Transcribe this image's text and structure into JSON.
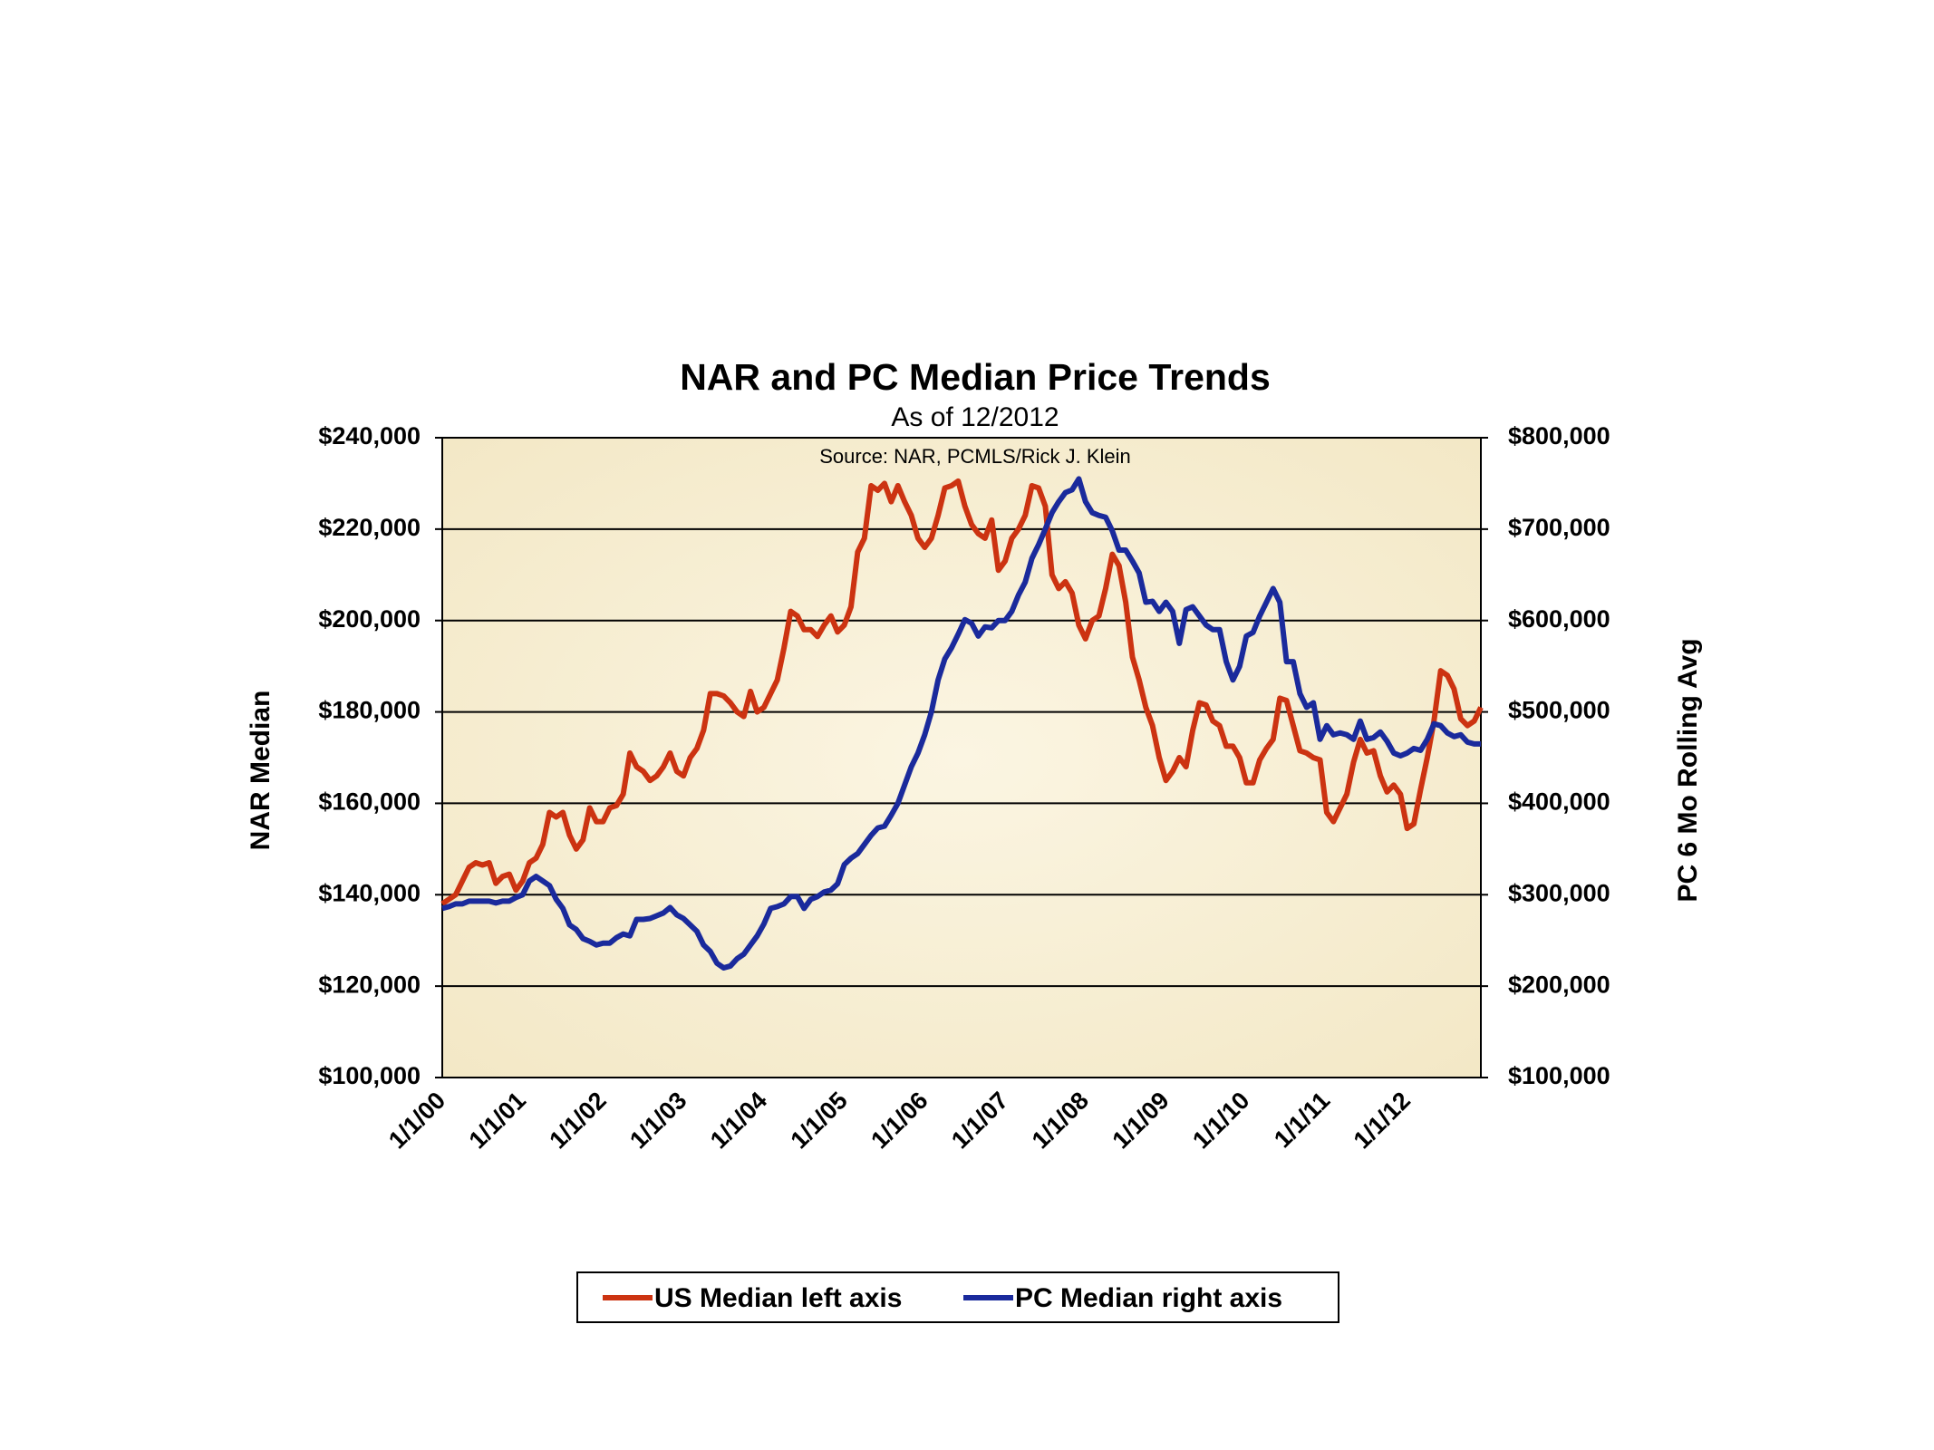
{
  "chart_data": {
    "type": "line",
    "title": "NAR and PC Median Price Trends",
    "subtitle": "As of 12/2012",
    "annotation": "Source: NAR, PCMLS/Rick J. Klein",
    "ylabel": "NAR Median",
    "y2label": "PC 6 Mo Rolling Avg",
    "categories": [
      "1/1/00",
      null,
      null,
      null,
      null,
      null,
      null,
      null,
      null,
      null,
      null,
      null,
      "1/1/01",
      null,
      null,
      null,
      null,
      null,
      null,
      null,
      null,
      null,
      null,
      null,
      "1/1/02",
      null,
      null,
      null,
      null,
      null,
      null,
      null,
      null,
      null,
      null,
      null,
      "1/1/03",
      null,
      null,
      null,
      null,
      null,
      null,
      null,
      null,
      null,
      null,
      null,
      "1/1/04",
      null,
      null,
      null,
      null,
      null,
      null,
      null,
      null,
      null,
      null,
      null,
      "1/1/05",
      null,
      null,
      null,
      null,
      null,
      null,
      null,
      null,
      null,
      null,
      null,
      "1/1/06",
      null,
      null,
      null,
      null,
      null,
      null,
      null,
      null,
      null,
      null,
      null,
      "1/1/07",
      null,
      null,
      null,
      null,
      null,
      null,
      null,
      null,
      null,
      null,
      null,
      "1/1/08",
      null,
      null,
      null,
      null,
      null,
      null,
      null,
      null,
      null,
      null,
      null,
      "1/1/09",
      null,
      null,
      null,
      null,
      null,
      null,
      null,
      null,
      null,
      null,
      null,
      "1/1/10",
      null,
      null,
      null,
      null,
      null,
      null,
      null,
      null,
      null,
      null,
      null,
      "1/1/11",
      null,
      null,
      null,
      null,
      null,
      null,
      null,
      null,
      null,
      null,
      null,
      "1/1/12",
      null,
      null,
      null,
      null,
      null,
      null,
      null,
      null,
      null,
      null,
      null
    ],
    "series": [
      {
        "name": "US Median left axis",
        "color": "#cc3311",
        "axis": "y",
        "values": [
          138000,
          139000,
          140000,
          143000,
          146000,
          147000,
          146500,
          147000,
          142500,
          144000,
          144500,
          141000,
          143000,
          147000,
          148000,
          151000,
          158000,
          157000,
          158000,
          153000,
          150000,
          152000,
          159000,
          156000,
          156000,
          159000,
          159500,
          162000,
          171000,
          168000,
          167000,
          165000,
          166000,
          168000,
          171000,
          167000,
          166000,
          170000,
          172000,
          176000,
          184000,
          184000,
          183500,
          182000,
          180000,
          179000,
          184500,
          180000,
          181000,
          184000,
          187000,
          194000,
          202000,
          201000,
          198000,
          198000,
          196500,
          199000,
          201000,
          197500,
          199000,
          203000,
          215000,
          218000,
          229500,
          228500,
          230000,
          226000,
          229500,
          226000,
          223000,
          218000,
          216000,
          218000,
          223000,
          229000,
          229500,
          230500,
          225000,
          221000,
          219000,
          218000,
          222000,
          211000,
          213000,
          218000,
          220000,
          223000,
          229500,
          229000,
          225000,
          210000,
          207000,
          208500,
          206000,
          199000,
          196000,
          200000,
          201000,
          207000,
          214500,
          212000,
          204000,
          192000,
          187000,
          181000,
          177000,
          170000,
          165000,
          167000,
          170000,
          168000,
          176000,
          182000,
          181500,
          178000,
          177000,
          172500,
          172500,
          170000,
          164500,
          164500,
          169500,
          172000,
          174000,
          183000,
          182500,
          177000,
          171500,
          171000,
          170000,
          169500,
          158000,
          156000,
          159000,
          162000,
          169000,
          174000,
          171000,
          171500,
          166000,
          162500,
          164000,
          162000,
          154500,
          155500,
          163000,
          170000,
          178000,
          189000,
          188000,
          185000,
          178500,
          177000,
          178000,
          181000
        ]
      },
      {
        "name": "PC Median right axis",
        "color": "#1a2a9c",
        "axis": "y2",
        "values": [
          285000,
          287000,
          290000,
          290000,
          293000,
          293000,
          293000,
          293000,
          291000,
          293000,
          293000,
          297000,
          300000,
          315000,
          320000,
          315000,
          310000,
          295000,
          285000,
          267000,
          262000,
          252000,
          249000,
          245000,
          247000,
          247000,
          253000,
          257000,
          255000,
          273000,
          273000,
          274000,
          277000,
          280000,
          286000,
          278000,
          274000,
          267000,
          260000,
          245000,
          238000,
          225000,
          220000,
          222000,
          230000,
          235000,
          245000,
          255000,
          268000,
          285000,
          287000,
          290000,
          298000,
          298000,
          285000,
          295000,
          298000,
          303000,
          305000,
          312000,
          333000,
          340000,
          345000,
          355000,
          365000,
          373000,
          375000,
          387000,
          400000,
          420000,
          440000,
          455000,
          475000,
          500000,
          535000,
          558000,
          570000,
          585000,
          601000,
          597000,
          583000,
          593000,
          592000,
          600000,
          600000,
          610000,
          628000,
          642000,
          668000,
          683000,
          700000,
          718000,
          730000,
          740000,
          743000,
          755000,
          730000,
          718000,
          715000,
          713000,
          698000,
          677000,
          677000,
          665000,
          652000,
          620000,
          621000,
          610000,
          620000,
          610000,
          575000,
          612000,
          615000,
          605000,
          595000,
          590000,
          590000,
          555000,
          535000,
          550000,
          583000,
          587000,
          605000,
          620000,
          635000,
          620000,
          555000,
          555000,
          520000,
          505000,
          510000,
          470000,
          485000,
          475000,
          477000,
          475000,
          470000,
          490000,
          470000,
          472000,
          478000,
          468000,
          455000,
          452000,
          455000,
          460000,
          458000,
          470000,
          487000,
          485000,
          477000,
          473000,
          475000,
          467000,
          465000,
          465000
        ]
      }
    ],
    "ylim": [
      100000,
      240000
    ],
    "yticks": [
      {
        "value": 100000,
        "label": "$100,000"
      },
      {
        "value": 120000,
        "label": "$120,000"
      },
      {
        "value": 140000,
        "label": "$140,000"
      },
      {
        "value": 160000,
        "label": "$160,000"
      },
      {
        "value": 180000,
        "label": "$180,000"
      },
      {
        "value": 200000,
        "label": "$200,000"
      },
      {
        "value": 220000,
        "label": "$220,000"
      },
      {
        "value": 240000,
        "label": "$240,000"
      }
    ],
    "y2lim": [
      100000,
      800000
    ],
    "y2ticks": [
      {
        "value": 100000,
        "label": "$100,000"
      },
      {
        "value": 200000,
        "label": "$200,000"
      },
      {
        "value": 300000,
        "label": "$300,000"
      },
      {
        "value": 400000,
        "label": "$400,000"
      },
      {
        "value": 500000,
        "label": "$500,000"
      },
      {
        "value": 600000,
        "label": "$600,000"
      },
      {
        "value": 700000,
        "label": "$700,000"
      },
      {
        "value": 800000,
        "label": "$800,000"
      }
    ],
    "grid": true,
    "legend": "bottom"
  }
}
